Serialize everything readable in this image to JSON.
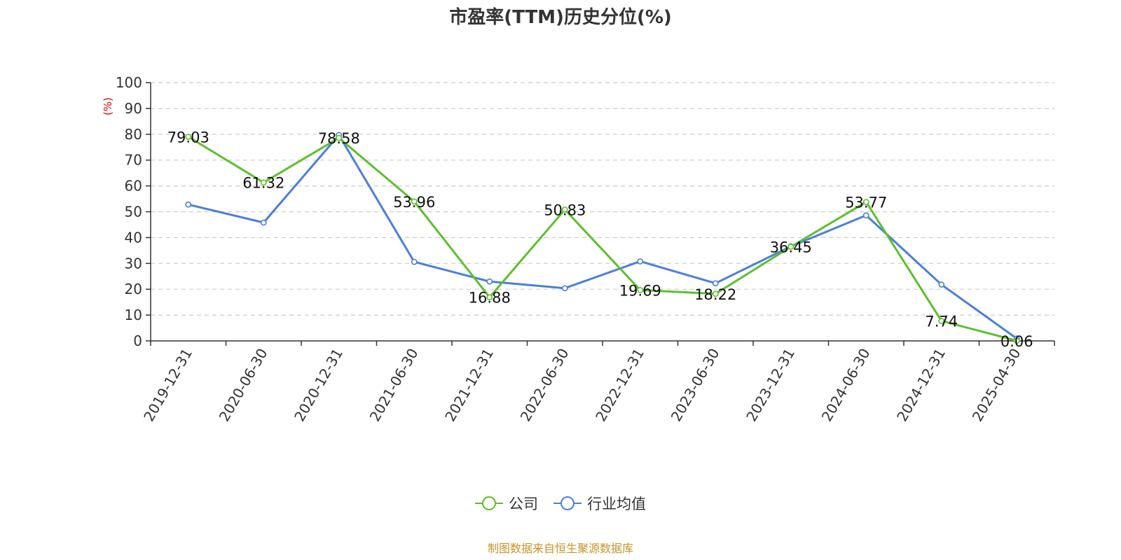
{
  "chart_data": {
    "type": "line",
    "title": "市盈率(TTM)历史分位(%)",
    "ylabel": "(%)",
    "ylim": [
      0,
      100
    ],
    "yticks": [
      0,
      10,
      20,
      30,
      40,
      50,
      60,
      70,
      80,
      90,
      100
    ],
    "categories": [
      "2019-12-31",
      "2020-06-30",
      "2020-12-31",
      "2021-06-30",
      "2021-12-31",
      "2022-06-30",
      "2022-12-31",
      "2023-06-30",
      "2023-12-31",
      "2024-06-30",
      "2024-12-31",
      "2025-04-30"
    ],
    "grid": true,
    "legend_position": "bottom",
    "series": [
      {
        "name": "公司",
        "color": "#5cc02c",
        "values": [
          79.03,
          61.32,
          78.58,
          53.96,
          16.88,
          50.83,
          19.69,
          18.22,
          36.45,
          53.77,
          7.74,
          0.06
        ],
        "data_labels": [
          "79.03",
          "61.32",
          "78.58",
          "53.96",
          "16.88",
          "50.83",
          "19.69",
          "18.22",
          "36.45",
          "53.77",
          "7.74",
          "0.06"
        ]
      },
      {
        "name": "行业均值",
        "color": "#4a7fdc",
        "values": [
          52.8,
          45.8,
          79.7,
          30.6,
          23.0,
          20.4,
          30.8,
          22.3,
          36.6,
          48.6,
          21.8,
          0.9
        ]
      }
    ]
  },
  "source_text": "制图数据来自恒生聚源数据库"
}
